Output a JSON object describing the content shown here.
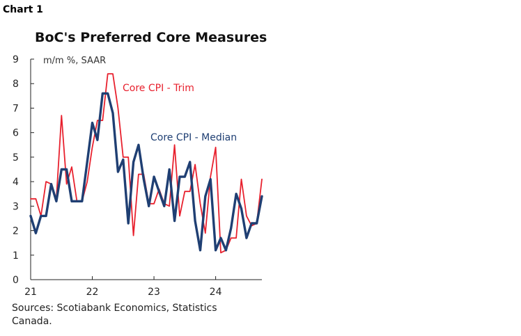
{
  "header": {
    "chart_number": "Chart 1",
    "title": "BoC's Preferred Core Measures"
  },
  "source_note": "Sources: Scotiabank Economics, Statistics Canada.",
  "colors": {
    "trim": "#e8212e",
    "median": "#1f3f73",
    "axis": "#222222"
  },
  "chart_data": {
    "type": "line",
    "title": "BoC's Preferred Core Measures",
    "ylabel": "m/m %, SAAR",
    "xlabel": "",
    "ylim": [
      0,
      9
    ],
    "yticks": [
      "0",
      "1",
      "2",
      "3",
      "4",
      "5",
      "6",
      "7",
      "8",
      "9"
    ],
    "xticks": [
      {
        "label": "21",
        "index": 0
      },
      {
        "label": "22",
        "index": 12
      },
      {
        "label": "23",
        "index": 24
      },
      {
        "label": "24",
        "index": 36
      }
    ],
    "x_count": 46,
    "grid": false,
    "series": [
      {
        "name": "Core CPI - Trim",
        "color": "#e8212e",
        "values": [
          3.3,
          3.3,
          2.6,
          4.0,
          3.9,
          3.3,
          6.7,
          3.9,
          4.6,
          3.2,
          3.2,
          4.0,
          5.4,
          6.5,
          6.5,
          8.4,
          8.4,
          7.0,
          5.0,
          5.0,
          1.8,
          4.3,
          4.3,
          3.1,
          3.1,
          3.7,
          3.1,
          3.0,
          5.5,
          2.6,
          3.6,
          3.6,
          4.7,
          3.1,
          1.9,
          4.2,
          5.4,
          1.1,
          1.2,
          1.7,
          1.7,
          4.1,
          2.6,
          2.2,
          2.3,
          4.1
        ]
      },
      {
        "name": "Core CPI - Median",
        "color": "#1f3f73",
        "values": [
          2.6,
          1.9,
          2.6,
          2.6,
          3.9,
          3.2,
          4.5,
          4.5,
          3.2,
          3.2,
          3.2,
          4.8,
          6.4,
          5.7,
          7.6,
          7.6,
          6.8,
          4.4,
          4.9,
          2.3,
          4.8,
          5.5,
          4.1,
          3.0,
          4.2,
          3.6,
          3.0,
          4.5,
          2.4,
          4.2,
          4.2,
          4.8,
          2.4,
          1.2,
          3.4,
          4.1,
          1.2,
          1.7,
          1.2,
          2.1,
          3.5,
          2.9,
          1.7,
          2.3,
          2.3,
          3.4
        ]
      }
    ],
    "annotations": [
      {
        "text": "Core CPI - Trim",
        "series": 0
      },
      {
        "text": "Core CPI - Median",
        "series": 1
      }
    ]
  }
}
